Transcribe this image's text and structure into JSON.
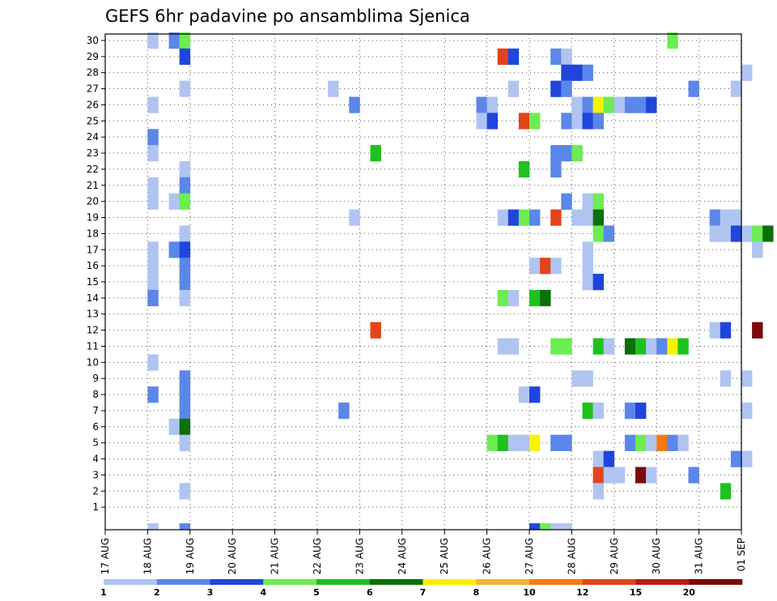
{
  "chart_data": {
    "type": "heatmap",
    "title": "GEFS 6hr padavine po ansamblima Sjenica",
    "y_tick_labels": [
      "1",
      "2",
      "3",
      "4",
      "5",
      "6",
      "7",
      "8",
      "9",
      "10",
      "11",
      "12",
      "13",
      "14",
      "15",
      "16",
      "17",
      "18",
      "19",
      "20",
      "21",
      "22",
      "23",
      "24",
      "25",
      "26",
      "27",
      "28",
      "29",
      "30"
    ],
    "y_range": [
      0,
      30
    ],
    "x_tick_labels": [
      "17 AUG",
      "18 AUG",
      "19 AUG",
      "20 AUG",
      "21 AUG",
      "22 AUG",
      "23 AUG",
      "24 AUG",
      "25 AUG",
      "26 AUG",
      "27 AUG",
      "28 AUG",
      "29 AUG",
      "30 AUG",
      "31 AUG",
      "01 SEP"
    ],
    "x_range": [
      "17 AUG 00z",
      "01 SEP 00z"
    ],
    "time_step_hours": 6,
    "grid": true,
    "grid_style": "dotted",
    "color_scale": {
      "thresholds": [
        "1",
        "2",
        "3",
        "4",
        "5",
        "6",
        "7",
        "8",
        "10",
        "12",
        "15",
        "20"
      ],
      "colors": [
        "#b0c4f2",
        "#5b86ea",
        "#1e46dd",
        "#6ced52",
        "#1ec21e",
        "#0a700a",
        "#f8f200",
        "#f7b23a",
        "#f57a12",
        "#e3431a",
        "#c01818",
        "#7a0a0a"
      ]
    },
    "cells": [
      {
        "m": 30,
        "s": [
          [
            4,
            1
          ],
          [
            6,
            2
          ],
          [
            7,
            4
          ],
          [
            53,
            4
          ]
        ]
      },
      {
        "m": 29,
        "s": [
          [
            7,
            3
          ],
          [
            37,
            10
          ],
          [
            38,
            3
          ],
          [
            42,
            2
          ],
          [
            43,
            1
          ]
        ]
      },
      {
        "m": 28,
        "s": [
          [
            43,
            3
          ],
          [
            44,
            3
          ],
          [
            45,
            2
          ],
          [
            60,
            1
          ]
        ]
      },
      {
        "m": 27,
        "s": [
          [
            7,
            1
          ],
          [
            21,
            1
          ],
          [
            38,
            1
          ],
          [
            42,
            3
          ],
          [
            43,
            2
          ],
          [
            55,
            2
          ],
          [
            59,
            1
          ]
        ]
      },
      {
        "m": 26,
        "s": [
          [
            4,
            1
          ],
          [
            23,
            2
          ],
          [
            35,
            2
          ],
          [
            36,
            1
          ],
          [
            44,
            1
          ],
          [
            45,
            2
          ],
          [
            46,
            7
          ],
          [
            47,
            4
          ],
          [
            48,
            1
          ],
          [
            49,
            2
          ],
          [
            50,
            2
          ],
          [
            51,
            3
          ]
        ]
      },
      {
        "m": 25,
        "s": [
          [
            35,
            1
          ],
          [
            36,
            3
          ],
          [
            39,
            10
          ],
          [
            40,
            4
          ],
          [
            43,
            2
          ],
          [
            44,
            1
          ],
          [
            45,
            3
          ],
          [
            46,
            2
          ]
        ]
      },
      {
        "m": 24,
        "s": [
          [
            4,
            2
          ]
        ]
      },
      {
        "m": 23,
        "s": [
          [
            4,
            1
          ],
          [
            25,
            5
          ],
          [
            42,
            2
          ],
          [
            43,
            2
          ],
          [
            44,
            4
          ]
        ]
      },
      {
        "m": 22,
        "s": [
          [
            7,
            1
          ],
          [
            39,
            5
          ],
          [
            42,
            2
          ]
        ]
      },
      {
        "m": 21,
        "s": [
          [
            4,
            1
          ],
          [
            7,
            2
          ]
        ]
      },
      {
        "m": 20,
        "s": [
          [
            4,
            1
          ],
          [
            6,
            1
          ],
          [
            7,
            4
          ],
          [
            43,
            2
          ],
          [
            45,
            1
          ],
          [
            46,
            4
          ]
        ]
      },
      {
        "m": 19,
        "s": [
          [
            23,
            1
          ],
          [
            37,
            1
          ],
          [
            38,
            3
          ],
          [
            39,
            4
          ],
          [
            40,
            2
          ],
          [
            42,
            10
          ],
          [
            44,
            1
          ],
          [
            45,
            1
          ],
          [
            46,
            6
          ],
          [
            57,
            2
          ],
          [
            58,
            1
          ],
          [
            59,
            1
          ]
        ]
      },
      {
        "m": 18,
        "s": [
          [
            7,
            1
          ],
          [
            46,
            4
          ],
          [
            47,
            2
          ],
          [
            57,
            1
          ],
          [
            58,
            1
          ],
          [
            59,
            3
          ],
          [
            60,
            1
          ],
          [
            61,
            4
          ],
          [
            62,
            6
          ]
        ]
      },
      {
        "m": 17,
        "s": [
          [
            4,
            1
          ],
          [
            6,
            2
          ],
          [
            7,
            3
          ],
          [
            45,
            1
          ],
          [
            61,
            1
          ]
        ]
      },
      {
        "m": 16,
        "s": [
          [
            4,
            1
          ],
          [
            7,
            2
          ],
          [
            40,
            1
          ],
          [
            41,
            10
          ],
          [
            42,
            1
          ],
          [
            45,
            1
          ]
        ]
      },
      {
        "m": 15,
        "s": [
          [
            4,
            1
          ],
          [
            7,
            2
          ],
          [
            45,
            1
          ],
          [
            46,
            3
          ]
        ]
      },
      {
        "m": 14,
        "s": [
          [
            4,
            2
          ],
          [
            7,
            1
          ],
          [
            37,
            4
          ],
          [
            38,
            1
          ],
          [
            40,
            5
          ],
          [
            41,
            6
          ]
        ]
      },
      {
        "m": 12,
        "s": [
          [
            25,
            10
          ],
          [
            57,
            1
          ],
          [
            58,
            3
          ],
          [
            61,
            12
          ]
        ]
      },
      {
        "m": 11,
        "s": [
          [
            37,
            1
          ],
          [
            38,
            1
          ],
          [
            42,
            4
          ],
          [
            43,
            4
          ],
          [
            46,
            5
          ],
          [
            47,
            1
          ],
          [
            49,
            6
          ],
          [
            50,
            5
          ],
          [
            51,
            1
          ],
          [
            52,
            2
          ],
          [
            53,
            7
          ],
          [
            54,
            5
          ]
        ]
      },
      {
        "m": 10,
        "s": [
          [
            4,
            1
          ]
        ]
      },
      {
        "m": 9,
        "s": [
          [
            7,
            2
          ],
          [
            44,
            1
          ],
          [
            45,
            1
          ],
          [
            58,
            1
          ],
          [
            60,
            1
          ]
        ]
      },
      {
        "m": 8,
        "s": [
          [
            4,
            2
          ],
          [
            7,
            2
          ],
          [
            39,
            1
          ],
          [
            40,
            3
          ]
        ]
      },
      {
        "m": 7,
        "s": [
          [
            7,
            2
          ],
          [
            22,
            2
          ],
          [
            45,
            5
          ],
          [
            46,
            1
          ],
          [
            49,
            2
          ],
          [
            50,
            3
          ],
          [
            60,
            1
          ]
        ]
      },
      {
        "m": 6,
        "s": [
          [
            6,
            1
          ],
          [
            7,
            6
          ]
        ]
      },
      {
        "m": 5,
        "s": [
          [
            7,
            1
          ],
          [
            36,
            4
          ],
          [
            37,
            5
          ],
          [
            38,
            1
          ],
          [
            39,
            1
          ],
          [
            40,
            7
          ],
          [
            42,
            2
          ],
          [
            43,
            2
          ],
          [
            49,
            2
          ],
          [
            50,
            4
          ],
          [
            51,
            1
          ],
          [
            52,
            9
          ],
          [
            53,
            2
          ],
          [
            54,
            1
          ]
        ]
      },
      {
        "m": 4,
        "s": [
          [
            46,
            1
          ],
          [
            47,
            3
          ],
          [
            59,
            2
          ],
          [
            60,
            1
          ]
        ]
      },
      {
        "m": 3,
        "s": [
          [
            46,
            10
          ],
          [
            47,
            1
          ],
          [
            48,
            1
          ],
          [
            50,
            12
          ],
          [
            51,
            1
          ],
          [
            55,
            2
          ]
        ]
      },
      {
        "m": 2,
        "s": [
          [
            7,
            1
          ],
          [
            46,
            1
          ],
          [
            58,
            5
          ]
        ]
      },
      {
        "m": 0,
        "s": [
          [
            4,
            1
          ],
          [
            7,
            2
          ],
          [
            40,
            3
          ],
          [
            41,
            4
          ],
          [
            42,
            1
          ],
          [
            43,
            1
          ]
        ]
      }
    ]
  }
}
